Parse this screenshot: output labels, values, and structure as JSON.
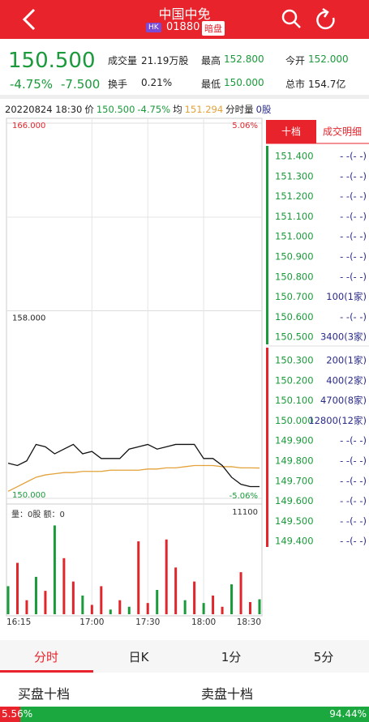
{
  "header": {
    "title": "中国中免",
    "market": "HK",
    "code": "01880",
    "tag": "暗盘"
  },
  "quote": {
    "price": "150.500",
    "change_pct": "-4.75%",
    "change": "-7.500",
    "stats": [
      {
        "label": "成交量",
        "value": "21.19万股"
      },
      {
        "label": "最高",
        "value": "152.800"
      },
      {
        "label": "今开",
        "value": "152.000"
      },
      {
        "label": "换手",
        "value": "0.21%"
      },
      {
        "label": "最低",
        "value": "150.000"
      },
      {
        "label": "总市",
        "value": "154.7亿"
      }
    ]
  },
  "info_line": {
    "time": "20220824 18:30",
    "price_label": "价",
    "price": "150.500",
    "change_pct": "-4.75%",
    "avg_label": "均",
    "avg": "151.294",
    "vol_label": "分时量",
    "vol": "0股"
  },
  "chart_data": [
    {
      "type": "line",
      "categories": [
        "16:15",
        null,
        null,
        null,
        null,
        null,
        null,
        null,
        null,
        "17:00",
        null,
        null,
        null,
        null,
        null,
        "17:30",
        null,
        null,
        null,
        null,
        null,
        "18:00",
        null,
        null,
        null,
        null,
        null,
        "18:30"
      ],
      "series": [
        {
          "name": "价",
          "color": "#111111",
          "values": [
            151.5,
            151.4,
            151.6,
            152.3,
            152.2,
            151.9,
            152.1,
            152.3,
            151.9,
            152.0,
            151.7,
            151.7,
            151.7,
            152.1,
            152.2,
            152.3,
            152.1,
            152.2,
            152.3,
            152.3,
            152.3,
            151.7,
            151.7,
            151.4,
            150.9,
            150.6,
            150.5,
            150.5
          ]
        },
        {
          "name": "均",
          "color": "#e3a23b",
          "values": [
            150.3,
            150.5,
            150.7,
            150.9,
            151.0,
            151.05,
            151.1,
            151.1,
            151.15,
            151.15,
            151.15,
            151.2,
            151.2,
            151.2,
            151.2,
            151.25,
            151.25,
            151.3,
            151.3,
            151.35,
            151.4,
            151.4,
            151.4,
            151.35,
            151.35,
            151.3,
            151.3,
            151.294
          ]
        }
      ],
      "ylim": [
        150,
        166
      ],
      "yticks": [
        {
          "value": 150,
          "label": "150.000"
        },
        {
          "value": 158,
          "label": "158.000"
        },
        {
          "value": 166,
          "label": "166.000"
        }
      ],
      "y2lim": [
        -5.06,
        5.06
      ],
      "y2ticks": [
        {
          "value": -5.06,
          "label": "-5.06%"
        },
        {
          "value": 5.06,
          "label": "5.06%"
        }
      ],
      "up_color": "#e0252b",
      "down_color": "#1a9a3a",
      "grid": true
    },
    {
      "type": "bar",
      "subtitle": "量：0股 额：0",
      "values": [
        3000,
        5500,
        1500,
        4000,
        2500,
        9500,
        6000,
        3500,
        2000,
        1000,
        3000,
        500,
        1500,
        800,
        7800,
        1200,
        2600,
        8000,
        5000,
        1500,
        3500,
        1200,
        2000,
        800,
        3200,
        4500,
        1300,
        1600
      ],
      "bar_colors": [
        "#1a9a3a",
        "#e0252b",
        "#e0252b",
        "#1a9a3a",
        "#e0252b",
        "#1a9a3a",
        "#e0252b",
        "#e0252b",
        "#1a9a3a",
        "#e0252b",
        "#e0252b",
        "#1a9a3a",
        "#e0252b",
        "#1a9a3a",
        "#e0252b",
        "#e0252b",
        "#1a9a3a",
        "#e0252b",
        "#e0252b",
        "#1a9a3a",
        "#e0252b",
        "#1a9a3a",
        "#e0252b",
        "#e0252b",
        "#1a9a3a",
        "#e0252b",
        "#e0252b",
        "#1a9a3a"
      ],
      "ylim": [
        0,
        11100
      ],
      "yticks": [
        11100
      ]
    }
  ],
  "order_book": {
    "tabs": [
      "十档",
      "成交明细"
    ],
    "asks": [
      {
        "price": "151.400",
        "qty": "- -(- -)"
      },
      {
        "price": "151.300",
        "qty": "- -(- -)"
      },
      {
        "price": "151.200",
        "qty": "- -(- -)"
      },
      {
        "price": "151.100",
        "qty": "- -(- -)"
      },
      {
        "price": "151.000",
        "qty": "- -(- -)"
      },
      {
        "price": "150.900",
        "qty": "- -(- -)"
      },
      {
        "price": "150.800",
        "qty": "- -(- -)"
      },
      {
        "price": "150.700",
        "qty": "100(1家)"
      },
      {
        "price": "150.600",
        "qty": "- -(- -)"
      },
      {
        "price": "150.500",
        "qty": "3400(3家)"
      }
    ],
    "bids": [
      {
        "price": "150.300",
        "qty": "200(1家)"
      },
      {
        "price": "150.200",
        "qty": "400(2家)"
      },
      {
        "price": "150.100",
        "qty": "4700(8家)"
      },
      {
        "price": "150.000",
        "qty": "12800(12家)"
      },
      {
        "price": "149.900",
        "qty": "- -(- -)"
      },
      {
        "price": "149.800",
        "qty": "- -(- -)"
      },
      {
        "price": "149.700",
        "qty": "- -(- -)"
      },
      {
        "price": "149.600",
        "qty": "- -(- -)"
      },
      {
        "price": "149.500",
        "qty": "- -(- -)"
      },
      {
        "price": "149.400",
        "qty": "- -(- -)"
      }
    ]
  },
  "tabs": [
    "分时",
    "日K",
    "1分",
    "5分"
  ],
  "depth_titles": [
    "买盘十档",
    "卖盘十档"
  ],
  "ratio": {
    "buy": {
      "value": 5.56,
      "label": "5.56%"
    },
    "sell": {
      "value": 94.44,
      "label": "94.44%"
    }
  }
}
